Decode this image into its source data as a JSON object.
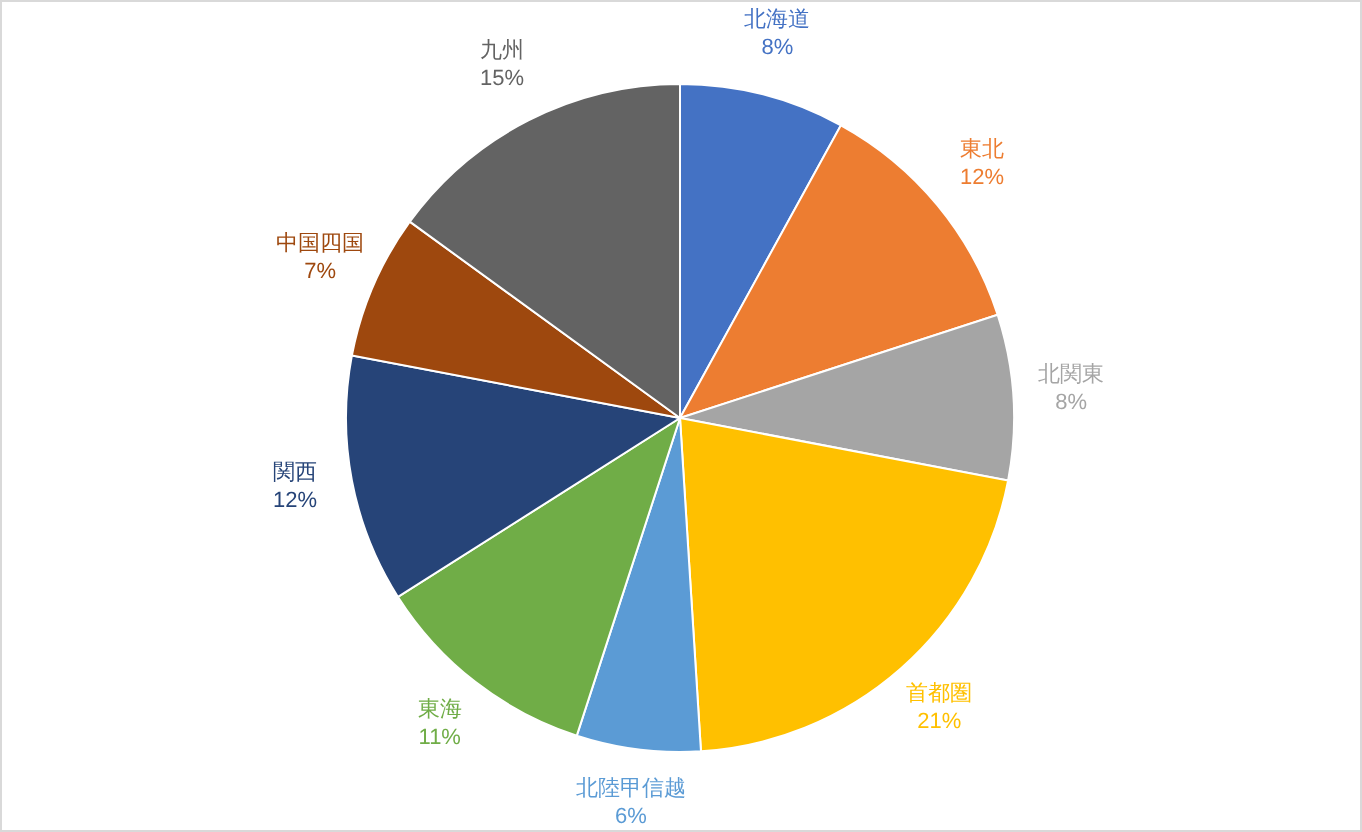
{
  "chart_data": {
    "type": "pie",
    "categories": [
      "北海道",
      "東北",
      "北関東",
      "首都圏",
      "北陸甲信越",
      "東海",
      "関西",
      "中国四国",
      "九州"
    ],
    "values": [
      8,
      12,
      8,
      21,
      6,
      11,
      12,
      7,
      15
    ],
    "value_labels": [
      "8%",
      "12%",
      "8%",
      "21%",
      "6%",
      "11%",
      "12%",
      "7%",
      "15%"
    ],
    "colors": [
      "#4472c4",
      "#ed7d31",
      "#a5a5a5",
      "#ffc000",
      "#5b9bd5",
      "#70ad47",
      "#264478",
      "#9e480e",
      "#636363"
    ]
  }
}
